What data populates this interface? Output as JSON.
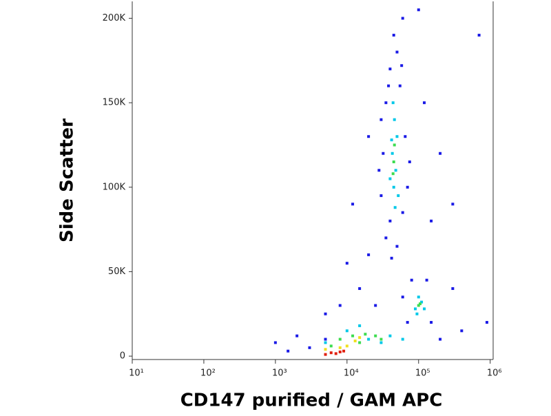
{
  "chart_data": {
    "type": "scatter",
    "xlabel": "CD147 purified / GAM APC",
    "ylabel": "Side Scatter",
    "xscale": "log",
    "xlim": [
      10,
      1100000
    ],
    "ylim": [
      -2000,
      210000
    ],
    "xticks": [
      {
        "value": 10,
        "label": "10¹"
      },
      {
        "value": 100,
        "label": "10²"
      },
      {
        "value": 1000,
        "label": "10³"
      },
      {
        "value": 10000,
        "label": "10⁴"
      },
      {
        "value": 100000,
        "label": "10⁵"
      },
      {
        "value": 1000000,
        "label": "10⁶"
      }
    ],
    "yticks": [
      0,
      {
        "value": 50000,
        "label": "50K"
      },
      {
        "value": 100000,
        "label": "100K"
      },
      {
        "value": 150000,
        "label": "150K"
      },
      {
        "value": 200000,
        "label": "200K"
      }
    ],
    "grid": false,
    "series": [
      {
        "color": "#1a1ae6",
        "x": [
          35000,
          50000,
          40000,
          60000,
          30000,
          70000,
          32000,
          65000,
          35000,
          55000,
          40000,
          50000,
          45000,
          60000,
          30000,
          75000,
          28000,
          58000,
          42000,
          38000,
          15000,
          20000,
          8000,
          10000,
          150000,
          200000,
          300000,
          120000,
          20000,
          12000,
          5000,
          3000,
          1500,
          1000,
          2000,
          400000,
          300000,
          200000,
          150000,
          80000,
          70000,
          130000,
          60000,
          900000,
          700000,
          5000,
          25000,
          100000
        ],
        "values": [
          70000,
          65000,
          80000,
          85000,
          95000,
          100000,
          120000,
          130000,
          150000,
          160000,
          170000,
          180000,
          190000,
          200000,
          140000,
          115000,
          110000,
          172000,
          58000,
          160000,
          40000,
          60000,
          30000,
          55000,
          80000,
          120000,
          90000,
          150000,
          130000,
          90000,
          10000,
          5000,
          3000,
          8000,
          12000,
          15000,
          40000,
          10000,
          20000,
          45000,
          20000,
          45000,
          35000,
          20000,
          190000,
          25000,
          30000,
          205000
        ]
      },
      {
        "color": "#00c8e8",
        "x": [
          45000,
          48000,
          43000,
          50000,
          46000,
          40000,
          52000,
          44000,
          47000,
          42000,
          90000,
          110000,
          100000,
          120000,
          95000,
          10000,
          20000,
          30000,
          5000,
          40000,
          15000,
          60000
        ],
        "values": [
          100000,
          110000,
          120000,
          130000,
          140000,
          105000,
          95000,
          150000,
          88000,
          128000,
          28000,
          32000,
          35000,
          28000,
          25000,
          15000,
          10000,
          8000,
          8000,
          12000,
          18000,
          10000
        ]
      },
      {
        "color": "#3ddc50",
        "x": [
          45000,
          46000,
          44000,
          100000,
          105000,
          12000,
          18000,
          25000,
          8000,
          15000,
          30000,
          6000
        ],
        "values": [
          115000,
          125000,
          108000,
          30000,
          31000,
          12000,
          13000,
          12000,
          10000,
          8000,
          10000,
          6000
        ]
      },
      {
        "color": "#f0e020",
        "x": [
          8000,
          10000,
          13000,
          5000,
          15000
        ],
        "values": [
          5000,
          6000,
          9000,
          4000,
          11000
        ]
      },
      {
        "color": "#e02010",
        "x": [
          6000,
          7000,
          8000,
          5000,
          9000
        ],
        "values": [
          2000,
          1500,
          2500,
          1000,
          3000
        ]
      }
    ]
  }
}
